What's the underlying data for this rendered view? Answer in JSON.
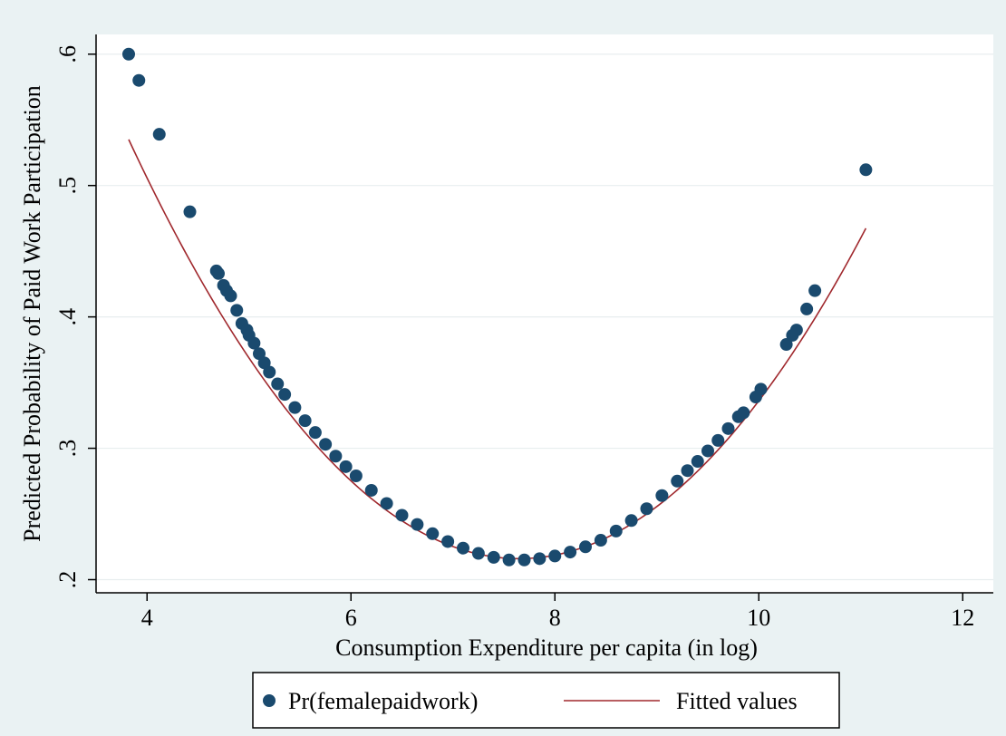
{
  "chart_data": {
    "type": "scatter",
    "title": "",
    "xlabel": "Consumption Expenditure per capita (in log)",
    "ylabel": "Predicted Probability of Paid Work Participation",
    "xlim": [
      3.5,
      12.3
    ],
    "ylim": [
      0.19,
      0.615
    ],
    "x_ticks": [
      4,
      6,
      8,
      10,
      12
    ],
    "y_ticks": [
      0.2,
      0.3,
      0.4,
      0.5,
      0.6
    ],
    "x_tick_labels": [
      "4",
      "6",
      "8",
      "10",
      "12"
    ],
    "y_tick_labels": [
      ".2",
      ".3",
      ".4",
      ".5",
      ".6"
    ],
    "grid": true,
    "legend_position": "bottom",
    "colors": {
      "plot_region_bg": "#ffffff",
      "outer_bg": "#eaf2f3",
      "gridline": "#e8eeef",
      "points": "#1a4a6e",
      "fitted": "#a0282d"
    },
    "legend": {
      "scatter_label": "Pr(femalepaidwork)",
      "line_label": "Fitted values"
    },
    "series": [
      {
        "name": "Pr(femalepaidwork)",
        "type": "scatter",
        "points": [
          [
            3.82,
            0.6
          ],
          [
            3.92,
            0.58
          ],
          [
            4.12,
            0.539
          ],
          [
            4.42,
            0.48
          ],
          [
            4.68,
            0.435
          ],
          [
            4.7,
            0.433
          ],
          [
            4.75,
            0.424
          ],
          [
            4.78,
            0.42
          ],
          [
            4.82,
            0.416
          ],
          [
            4.88,
            0.405
          ],
          [
            4.93,
            0.395
          ],
          [
            4.98,
            0.39
          ],
          [
            5.0,
            0.386
          ],
          [
            5.05,
            0.38
          ],
          [
            5.1,
            0.372
          ],
          [
            5.15,
            0.365
          ],
          [
            5.2,
            0.358
          ],
          [
            5.28,
            0.349
          ],
          [
            5.35,
            0.341
          ],
          [
            5.45,
            0.331
          ],
          [
            5.55,
            0.321
          ],
          [
            5.65,
            0.312
          ],
          [
            5.75,
            0.303
          ],
          [
            5.85,
            0.294
          ],
          [
            5.95,
            0.286
          ],
          [
            6.05,
            0.279
          ],
          [
            6.2,
            0.268
          ],
          [
            6.35,
            0.258
          ],
          [
            6.5,
            0.249
          ],
          [
            6.65,
            0.242
          ],
          [
            6.8,
            0.235
          ],
          [
            6.95,
            0.229
          ],
          [
            7.1,
            0.224
          ],
          [
            7.25,
            0.22
          ],
          [
            7.4,
            0.217
          ],
          [
            7.55,
            0.215
          ],
          [
            7.7,
            0.215
          ],
          [
            7.85,
            0.216
          ],
          [
            8.0,
            0.218
          ],
          [
            8.15,
            0.221
          ],
          [
            8.3,
            0.225
          ],
          [
            8.45,
            0.23
          ],
          [
            8.6,
            0.237
          ],
          [
            8.75,
            0.245
          ],
          [
            8.9,
            0.254
          ],
          [
            9.05,
            0.264
          ],
          [
            9.2,
            0.275
          ],
          [
            9.3,
            0.283
          ],
          [
            9.4,
            0.29
          ],
          [
            9.5,
            0.298
          ],
          [
            9.6,
            0.306
          ],
          [
            9.7,
            0.315
          ],
          [
            9.8,
            0.324
          ],
          [
            9.85,
            0.327
          ],
          [
            9.97,
            0.339
          ],
          [
            10.02,
            0.345
          ],
          [
            10.27,
            0.379
          ],
          [
            10.33,
            0.386
          ],
          [
            10.37,
            0.39
          ],
          [
            10.47,
            0.406
          ],
          [
            10.55,
            0.42
          ],
          [
            11.05,
            0.512
          ]
        ]
      },
      {
        "name": "Fitted values",
        "type": "line",
        "quadratic": {
          "vertex_x": 7.65,
          "vertex_y": 0.216,
          "curvature": 0.02175
        },
        "x_range": [
          3.82,
          11.05
        ]
      }
    ]
  }
}
